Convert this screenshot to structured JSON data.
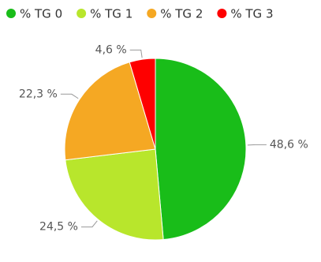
{
  "chart_data": {
    "type": "pie",
    "categories": [
      "% TG 0",
      "% TG 1",
      "% TG 2",
      "% TG 3"
    ],
    "values": [
      48.6,
      24.5,
      22.3,
      4.6
    ],
    "value_labels": [
      "48,6 %",
      "24,5 %",
      "22,3 %",
      "4,6 %"
    ],
    "colors": [
      "#19bd19",
      "#b8e62c",
      "#f5a823",
      "#fe0000"
    ],
    "legend": "top-left"
  }
}
